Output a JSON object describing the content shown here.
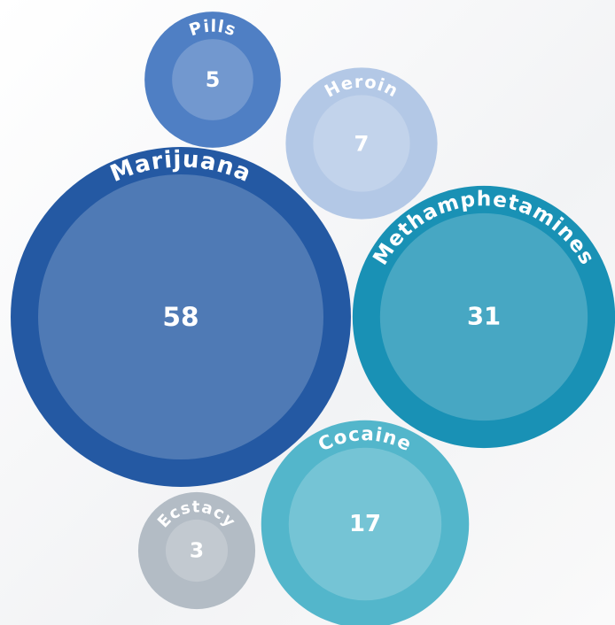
{
  "chart_data": {
    "type": "bubble",
    "categories": [
      "Pills",
      "Heroin",
      "Marijuana",
      "Methamphetamines",
      "Cocaine",
      "Ecstacy"
    ],
    "values": [
      5,
      7,
      58,
      31,
      17,
      3
    ],
    "colors": [
      "#4f7fc4",
      "#b3c8e6",
      "#2459a3",
      "#1991b5",
      "#53b6cb",
      "#b3bcc5"
    ]
  }
}
